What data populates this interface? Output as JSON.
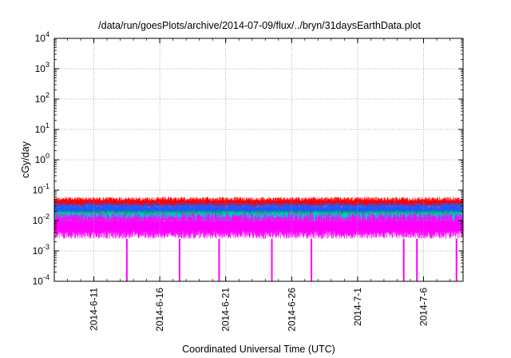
{
  "chart_data": {
    "type": "line",
    "title": "/data/run/goesPlots/archive/2014-07-09/flux/../bryn/31daysEarthData.plot",
    "xlabel": "Coordinated Universal Time (UTC)",
    "ylabel": "cGy/day",
    "y_scale": "log",
    "ylim": [
      0.0001,
      10000
    ],
    "y_ticks": [
      {
        "value": 0.0001,
        "base": "10",
        "exp": "-4"
      },
      {
        "value": 0.001,
        "base": "10",
        "exp": "-3"
      },
      {
        "value": 0.01,
        "base": "10",
        "exp": "-2"
      },
      {
        "value": 0.1,
        "base": "10",
        "exp": "-1"
      },
      {
        "value": 1,
        "base": "10",
        "exp": "0"
      },
      {
        "value": 10,
        "base": "10",
        "exp": "1"
      },
      {
        "value": 100,
        "base": "10",
        "exp": "2"
      },
      {
        "value": 1000,
        "base": "10",
        "exp": "3"
      },
      {
        "value": 10000,
        "base": "10",
        "exp": "4"
      }
    ],
    "xlim": [
      "2014-06-08",
      "2014-07-09"
    ],
    "x_ticks": [
      "2014-6-11",
      "2014-6-16",
      "2014-6-21",
      "2014-6-26",
      "2014-7-1",
      "2014-7-6"
    ],
    "x_tick_dates": [
      "2014-06-11",
      "2014-06-16",
      "2014-06-21",
      "2014-06-26",
      "2014-07-01",
      "2014-07-06"
    ],
    "grid": true,
    "series": [
      {
        "color": "#ff0000",
        "values_range": [
          0.025,
          0.06
        ]
      },
      {
        "color": "#1e5aff",
        "values_range": [
          0.012,
          0.04
        ]
      },
      {
        "color": "#00b050",
        "values_range": [
          0.01,
          0.022
        ]
      },
      {
        "color": "#00c8c8",
        "values_range": [
          0.008,
          0.02
        ]
      },
      {
        "color": "#ff00ff",
        "values_range": [
          0.0025,
          0.018
        ]
      }
    ],
    "dropouts_x": [
      "2014-06-13",
      "2014-06-17",
      "2014-06-20",
      "2014-06-24",
      "2014-06-27",
      "2014-07-04",
      "2014-07-05",
      "2014-07-08"
    ],
    "dropout_min": 0.0001
  }
}
